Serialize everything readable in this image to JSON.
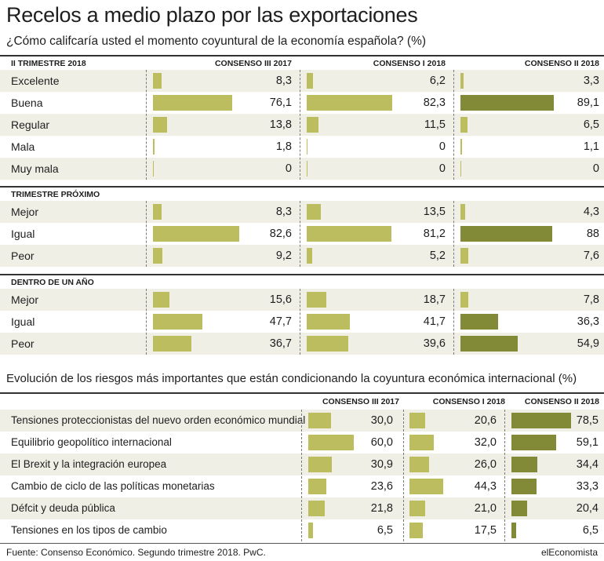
{
  "header": {
    "title": "Recelos a medio plazo por las exportaciones",
    "subtitle": "¿Cómo califcaría usted el momento coyuntural de la economía española? (%)"
  },
  "colors": {
    "light_bar": "#bcbd5f",
    "dark_bar": "#828a37",
    "shade": "#f0efe6"
  },
  "chart_data": [
    {
      "type": "bar",
      "title": "¿Cómo califcaría usted el momento coyuntural de la economía española? (%)",
      "columns": [
        "CONSENSO III 2017",
        "CONSENSO I 2018",
        "CONSENSO II 2018"
      ],
      "sections": [
        {
          "name": "II TRIMESTRE 2018",
          "categories": [
            "Excelente",
            "Buena",
            "Regular",
            "Mala",
            "Muy mala"
          ],
          "values": [
            [
              "8,3",
              "6,2",
              "3,3"
            ],
            [
              "76,1",
              "82,3",
              "89,1"
            ],
            [
              "13,8",
              "11,5",
              "6,5"
            ],
            [
              "1,8",
              "0",
              "1,1"
            ],
            [
              "0",
              "0",
              "0"
            ]
          ]
        },
        {
          "name": "TRIMESTRE PRÓXIMO",
          "categories": [
            "Mejor",
            "Igual",
            "Peor"
          ],
          "values": [
            [
              "8,3",
              "13,5",
              "4,3"
            ],
            [
              "82,6",
              "81,2",
              "88"
            ],
            [
              "9,2",
              "5,2",
              "7,6"
            ]
          ]
        },
        {
          "name": "DENTRO DE UN AÑO",
          "categories": [
            "Mejor",
            "Igual",
            "Peor"
          ],
          "values": [
            [
              "15,6",
              "18,7",
              "7,8"
            ],
            [
              "47,7",
              "41,7",
              "36,3"
            ],
            [
              "36,7",
              "39,6",
              "54,9"
            ]
          ]
        }
      ]
    },
    {
      "type": "bar",
      "title": "Evolución de los riesgos más importantes que están condicionando la coyuntura económica internacional (%)",
      "columns": [
        "CONSENSO III 2017",
        "CONSENSO I 2018",
        "CONSENSO II 2018"
      ],
      "categories": [
        "Tensiones proteccionistas del nuevo orden económico mundial",
        "Equilibrio geopolítico internacional",
        "El Brexit y la integración europea",
        "Cambio de ciclo de las políticas monetarias",
        "Défcit y deuda pública",
        "Tensiones en los tipos de cambio"
      ],
      "values": [
        [
          "30,0",
          "20,6",
          "78,5"
        ],
        [
          "60,0",
          "32,0",
          "59,1"
        ],
        [
          "30,9",
          "26,0",
          "34,4"
        ],
        [
          "23,6",
          "44,3",
          "33,3"
        ],
        [
          "21,8",
          "21,0",
          "20,4"
        ],
        [
          "6,5",
          "17,5",
          "6,5"
        ]
      ]
    }
  ],
  "footer": {
    "source": "Fuente: Consenso Económico. Segundo trimestre 2018. PwC.",
    "brand": "elEconomista"
  }
}
